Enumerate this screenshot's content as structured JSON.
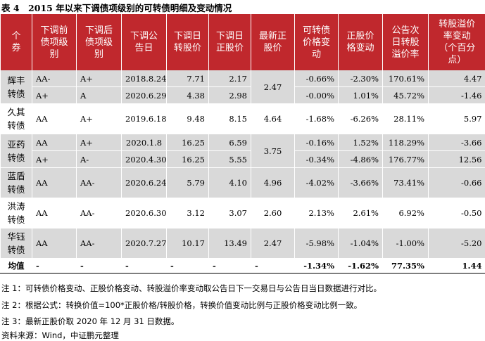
{
  "title": "表 4　2015 年以来下调债项级别的可转债明细及变动情况",
  "table": {
    "headers": [
      "个券",
      "下调前债项级别",
      "下调后债项级别",
      "下调公告日",
      "下调日转股价",
      "下调日正股价",
      "最新正股价",
      "可转债价格变动",
      "正股价格变动",
      "公告次日转股溢价率",
      "转股溢价率变动（个百分点）"
    ],
    "groups": [
      {
        "name": "辉丰转债",
        "latest": "2.47",
        "rows": [
          [
            "AA-",
            "A+",
            "2018.8.24",
            "7.71",
            "2.17",
            "-0.66%",
            "-2.30%",
            "170.61%",
            "4.47"
          ],
          [
            "A+",
            "A",
            "2020.6.29",
            "4.38",
            "2.98",
            "-0.00%",
            "1.01%",
            "45.72%",
            "-1.46"
          ]
        ]
      },
      {
        "name": "久其转债",
        "latest": "4.64",
        "rows": [
          [
            "AA",
            "A+",
            "2019.6.18",
            "9.48",
            "8.15",
            "-1.68%",
            "-6.26%",
            "28.11%",
            "5.97"
          ]
        ]
      },
      {
        "name": "亚药转债",
        "latest": "3.75",
        "rows": [
          [
            "AA",
            "A+",
            "2020.1.8",
            "16.25",
            "6.59",
            "-0.16%",
            "1.52%",
            "118.29%",
            "-3.66"
          ],
          [
            "A+",
            "A-",
            "2020.4.30",
            "16.25",
            "5.55",
            "-0.34%",
            "-4.86%",
            "176.77%",
            "12.56"
          ]
        ]
      },
      {
        "name": "蓝盾转债",
        "latest": "4.96",
        "rows": [
          [
            "AA",
            "AA-",
            "2020.6.24",
            "5.79",
            "4.10",
            "-4.02%",
            "-3.66%",
            "73.41%",
            "-0.66"
          ]
        ]
      },
      {
        "name": "洪涛转债",
        "latest": "2.60",
        "rows": [
          [
            "AA",
            "AA-",
            "2020.6.30",
            "3.12",
            "3.07",
            "2.13%",
            "2.61%",
            "6.92%",
            "-0.50"
          ]
        ]
      },
      {
        "name": "华钰转债",
        "latest": "2.47",
        "rows": [
          [
            "AA",
            "AA-",
            "2020.7.27",
            "10.17",
            "13.49",
            "-5.98%",
            "-1.04%",
            "-1.00%",
            "-5.20"
          ]
        ]
      }
    ],
    "mean": {
      "label": "均值",
      "cells": [
        "-",
        "-",
        "-",
        "-",
        "-",
        "-",
        "-1.34%",
        "-1.62%",
        "77.35%",
        "1.44"
      ]
    }
  },
  "notes": [
    "注 1：可转债价格变动、正股价格变动、转股溢价率变动取公告日下一交易日与公告日当日数据进行对比。",
    "注 2：根据公式：转换价值=100*正股价格/转股价格，转换价值变动比例与正股价格变动比例一致。",
    "注 3：最新正股价取 2020 年 12 月 31 日数据。"
  ],
  "source": "资料来源：Wind，中证鹏元整理"
}
